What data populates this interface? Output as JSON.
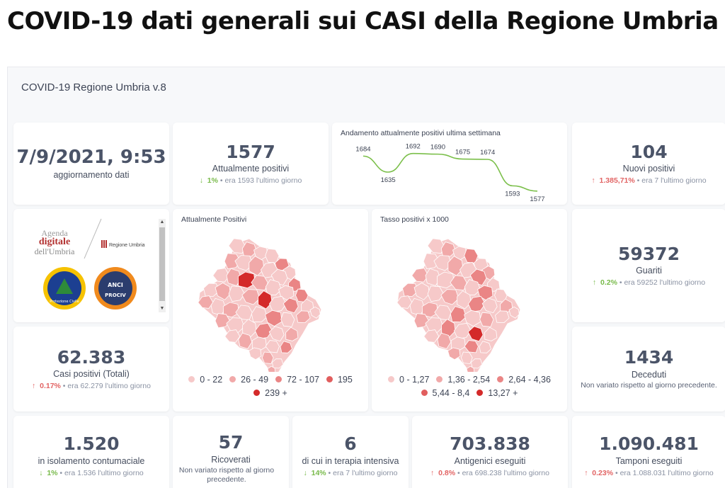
{
  "page_title": "COVID-19 dati generali sui CASI della Regione Umbria",
  "dashboard_title": "COVID-19 Regione Umbria v.8",
  "update": {
    "value": "7/9/2021, 9:53",
    "label": "aggiornamento dati"
  },
  "attualmente_positivi": {
    "value": "1577",
    "label": "Attualmente positivi",
    "pct": "1%",
    "prev": "era 1593  l'ultimo giorno",
    "trend": "down"
  },
  "nuovi_positivi": {
    "value": "104",
    "label": "Nuovi positivi",
    "pct": "1.385,71%",
    "prev": "era 7  l'ultimo giorno",
    "trend": "up"
  },
  "guariti": {
    "value": "59372",
    "label": "Guariti",
    "pct": "0.2%",
    "prev": "era 59252  l'ultimo giorno",
    "trend": "up"
  },
  "casi_totali": {
    "value": "62.383",
    "label": "Casi positivi (Totali)",
    "pct": "0.17%",
    "prev": "era 62.279  l'ultimo giorno",
    "trend": "up"
  },
  "deceduti": {
    "value": "1434",
    "label": "Deceduti",
    "note": "Non variato rispetto al giorno precedente."
  },
  "isolamento": {
    "value": "1.520",
    "label": "in isolamento contumaciale",
    "pct": "1%",
    "prev": "era 1.536  l'ultimo giorno",
    "trend": "down"
  },
  "ricoverati": {
    "value": "57",
    "label": "Ricoverati",
    "note": "Non variato rispetto al giorno precedente."
  },
  "terapia_intensiva": {
    "value": "6",
    "label": "di cui in terapia intensiva",
    "pct": "14%",
    "prev": "era 7  l'ultimo giorno",
    "trend": "down"
  },
  "antigenici": {
    "value": "703.838",
    "label": "Antigenici eseguiti",
    "pct": "0.8%",
    "prev": "era 698.238  l'ultimo giorno",
    "trend": "up"
  },
  "tamponi": {
    "value": "1.090.481",
    "label": "Tamponi eseguiti",
    "pct": "0.23%",
    "prev": "era 1.088.031  l'ultimo giorno",
    "trend": "up"
  },
  "logos": {
    "agenda": [
      "Agenda",
      "digitale",
      "dell'Umbria"
    ],
    "regione": "Regione Umbria",
    "protezione_civile": "Protezione Civile",
    "anci": [
      "ANCI",
      "PROCIV"
    ]
  },
  "map_positivi": {
    "title": "Attualmente Positivi",
    "legend": [
      {
        "label": "0 - 22",
        "color": "#f6c9c9"
      },
      {
        "label": "26 - 49",
        "color": "#f1a9a9"
      },
      {
        "label": "72 - 107",
        "color": "#ea8585"
      },
      {
        "label": "195",
        "color": "#e15e5e"
      },
      {
        "label": "239 +",
        "color": "#d42a2a"
      }
    ]
  },
  "map_tasso": {
    "title": "Tasso positivi x 1000",
    "legend": [
      {
        "label": "0 - 1,27",
        "color": "#f6c9c9"
      },
      {
        "label": "1,36 - 2,54",
        "color": "#f1a9a9"
      },
      {
        "label": "2,64 - 4,36",
        "color": "#ea8585"
      },
      {
        "label": "5,44 - 8,4",
        "color": "#e15e5e"
      },
      {
        "label": "13,27 +",
        "color": "#d42a2a"
      }
    ]
  },
  "chart_data": {
    "type": "line",
    "title": "Andamento attualmente positivi ultima settimana",
    "values": [
      1684,
      1635,
      1692,
      1690,
      1675,
      1674,
      1593,
      1577
    ],
    "color": "#7bbf4a"
  }
}
